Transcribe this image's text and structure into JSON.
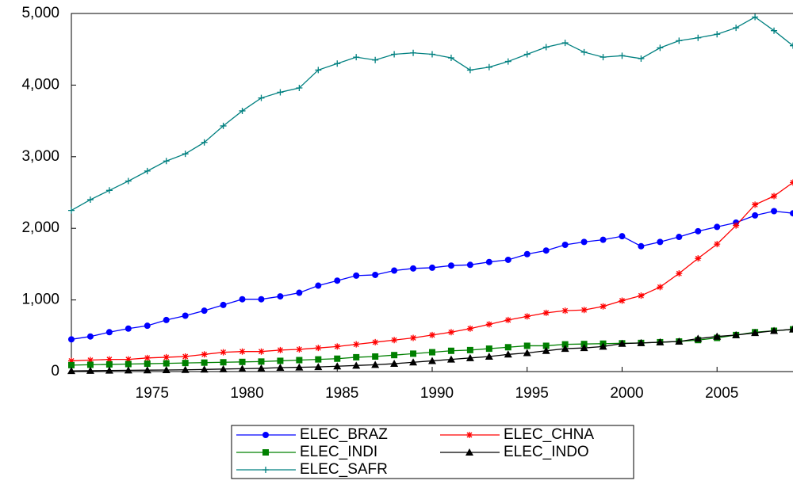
{
  "chart_data": {
    "type": "line",
    "x": [
      1971,
      1972,
      1973,
      1974,
      1975,
      1976,
      1977,
      1978,
      1979,
      1980,
      1981,
      1982,
      1983,
      1984,
      1985,
      1986,
      1987,
      1988,
      1989,
      1990,
      1991,
      1992,
      1993,
      1994,
      1995,
      1996,
      1997,
      1998,
      1999,
      2000,
      2001,
      2002,
      2003,
      2004,
      2005,
      2006,
      2007,
      2008,
      2009
    ],
    "xlim": [
      1971,
      2009
    ],
    "xticks": [
      1975,
      1980,
      1985,
      1990,
      1995,
      2000,
      2005
    ],
    "ylim": [
      0,
      5000
    ],
    "yticks": [
      {
        "value": 0,
        "label": "0"
      },
      {
        "value": 1000,
        "label": "1,000"
      },
      {
        "value": 2000,
        "label": "2,000"
      },
      {
        "value": 3000,
        "label": "3,000"
      },
      {
        "value": 4000,
        "label": "4,000"
      },
      {
        "value": 5000,
        "label": "5,000"
      }
    ],
    "grid": false,
    "legend": "bottom",
    "series": [
      {
        "name": "ELEC_BRAZ",
        "color": "#0000ff",
        "marker": "circle",
        "values": [
          450,
          490,
          550,
          600,
          640,
          720,
          780,
          850,
          930,
          1010,
          1010,
          1050,
          1100,
          1200,
          1270,
          1340,
          1350,
          1410,
          1440,
          1450,
          1480,
          1490,
          1530,
          1560,
          1640,
          1690,
          1770,
          1810,
          1840,
          1890,
          1750,
          1810,
          1880,
          1960,
          2020,
          2080,
          2180,
          2240,
          2210
        ]
      },
      {
        "name": "ELEC_CHNA",
        "color": "#ff0000",
        "marker": "star",
        "values": [
          150,
          160,
          170,
          170,
          190,
          200,
          210,
          240,
          270,
          280,
          280,
          300,
          310,
          330,
          350,
          380,
          410,
          440,
          470,
          510,
          550,
          600,
          660,
          720,
          770,
          820,
          850,
          860,
          910,
          990,
          1060,
          1180,
          1370,
          1580,
          1780,
          2040,
          2330,
          2450,
          2640
        ]
      },
      {
        "name": "ELEC_INDI",
        "color": "#008000",
        "marker": "square",
        "values": [
          90,
          95,
          100,
          105,
          110,
          115,
          120,
          125,
          130,
          135,
          140,
          150,
          160,
          170,
          180,
          200,
          210,
          230,
          250,
          270,
          290,
          300,
          320,
          340,
          360,
          360,
          380,
          385,
          390,
          395,
          400,
          410,
          420,
          440,
          470,
          510,
          550,
          570,
          590
        ]
      },
      {
        "name": "ELEC_INDO",
        "color": "#000000",
        "marker": "triangle",
        "values": [
          10,
          12,
          15,
          18,
          20,
          22,
          25,
          30,
          35,
          40,
          45,
          55,
          60,
          65,
          75,
          85,
          95,
          110,
          130,
          150,
          170,
          190,
          210,
          240,
          260,
          290,
          320,
          330,
          350,
          390,
          400,
          410,
          420,
          460,
          490,
          510,
          540,
          570,
          590
        ]
      },
      {
        "name": "ELEC_SAFR",
        "color": "#008080",
        "marker": "plus",
        "values": [
          2250,
          2400,
          2530,
          2660,
          2800,
          2940,
          3040,
          3200,
          3430,
          3640,
          3820,
          3900,
          3960,
          4210,
          4300,
          4390,
          4350,
          4430,
          4450,
          4430,
          4380,
          4210,
          4250,
          4330,
          4430,
          4530,
          4590,
          4460,
          4390,
          4410,
          4370,
          4520,
          4620,
          4660,
          4710,
          4800,
          4950,
          4760,
          4550
        ]
      }
    ]
  }
}
